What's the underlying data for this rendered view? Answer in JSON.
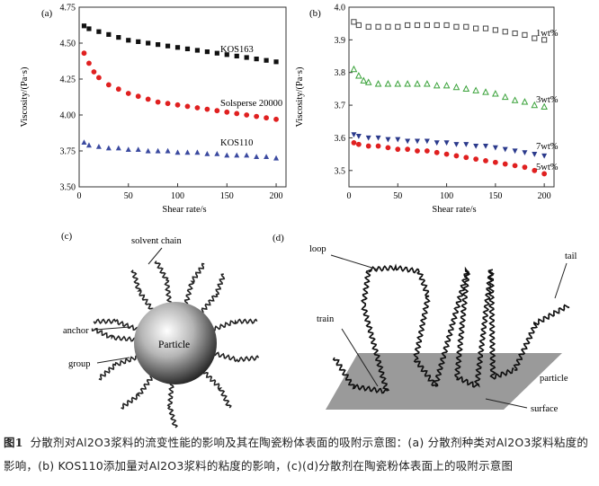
{
  "chart_data": [
    {
      "panel": "(a)",
      "type": "scatter",
      "xlabel": "Shear rate/s",
      "ylabel": "Viscosity/(Pa·s)",
      "xlim": [
        0,
        210
      ],
      "ylim": [
        3.5,
        4.75
      ],
      "xticks": [
        "0",
        "50",
        "100",
        "150",
        "200"
      ],
      "yticks": [
        "3.50",
        "3.75",
        "4.00",
        "4.25",
        "4.50",
        "4.75"
      ],
      "series": [
        {
          "name": "KOS163",
          "marker": "square",
          "color": "#111111",
          "x": [
            5,
            10,
            20,
            30,
            40,
            50,
            60,
            70,
            80,
            90,
            100,
            110,
            120,
            130,
            140,
            150,
            160,
            170,
            180,
            190,
            200
          ],
          "y": [
            4.62,
            4.6,
            4.58,
            4.56,
            4.54,
            4.52,
            4.51,
            4.5,
            4.49,
            4.48,
            4.47,
            4.46,
            4.45,
            4.44,
            4.43,
            4.42,
            4.41,
            4.4,
            4.39,
            4.38,
            4.37
          ]
        },
        {
          "name": "Solsperse 20000",
          "marker": "circle",
          "color": "#e02020",
          "x": [
            5,
            10,
            15,
            20,
            30,
            40,
            50,
            60,
            70,
            80,
            90,
            100,
            110,
            120,
            130,
            140,
            150,
            160,
            170,
            180,
            190,
            200
          ],
          "y": [
            4.43,
            4.36,
            4.3,
            4.26,
            4.21,
            4.18,
            4.15,
            4.13,
            4.11,
            4.09,
            4.08,
            4.07,
            4.06,
            4.05,
            4.04,
            4.03,
            4.02,
            4.01,
            4.0,
            3.99,
            3.98,
            3.97
          ]
        },
        {
          "name": "KOS110",
          "marker": "triangle-up",
          "color": "#3b4aa0",
          "x": [
            5,
            10,
            20,
            30,
            40,
            50,
            60,
            70,
            80,
            90,
            100,
            110,
            120,
            130,
            140,
            150,
            160,
            170,
            180,
            190,
            200
          ],
          "y": [
            3.81,
            3.79,
            3.78,
            3.77,
            3.77,
            3.76,
            3.76,
            3.75,
            3.75,
            3.75,
            3.74,
            3.74,
            3.74,
            3.73,
            3.73,
            3.72,
            3.72,
            3.72,
            3.71,
            3.71,
            3.7
          ]
        }
      ]
    },
    {
      "panel": "(b)",
      "type": "scatter",
      "xlabel": "Shear rate/s",
      "ylabel": "Viscosity/(Pa·s)",
      "xlim": [
        0,
        210
      ],
      "ylim": [
        3.45,
        4.0
      ],
      "xticks": [
        "0",
        "50",
        "100",
        "150",
        "200"
      ],
      "yticks": [
        "3.5",
        "3.6",
        "3.7",
        "3.8",
        "3.9",
        "4.0"
      ],
      "series": [
        {
          "name": "1wt%",
          "marker": "square-open",
          "color": "#444444",
          "x": [
            5,
            10,
            20,
            30,
            40,
            50,
            60,
            70,
            80,
            90,
            100,
            110,
            120,
            130,
            140,
            150,
            160,
            170,
            180,
            190,
            200
          ],
          "y": [
            3.955,
            3.945,
            3.94,
            3.94,
            3.94,
            3.94,
            3.945,
            3.945,
            3.945,
            3.945,
            3.945,
            3.94,
            3.94,
            3.935,
            3.935,
            3.93,
            3.925,
            3.92,
            3.915,
            3.905,
            3.9
          ]
        },
        {
          "name": "3wt%",
          "marker": "triangle-up-open",
          "color": "#3aa23a",
          "x": [
            5,
            10,
            15,
            20,
            30,
            40,
            50,
            60,
            70,
            80,
            90,
            100,
            110,
            120,
            130,
            140,
            150,
            160,
            170,
            180,
            190,
            200
          ],
          "y": [
            3.81,
            3.79,
            3.775,
            3.77,
            3.765,
            3.765,
            3.765,
            3.765,
            3.765,
            3.765,
            3.76,
            3.76,
            3.755,
            3.75,
            3.745,
            3.74,
            3.735,
            3.725,
            3.715,
            3.71,
            3.7,
            3.695
          ]
        },
        {
          "name": "7wt%",
          "marker": "triangle-down",
          "color": "#2b3a8c",
          "x": [
            5,
            10,
            20,
            30,
            40,
            50,
            60,
            70,
            80,
            90,
            100,
            110,
            120,
            130,
            140,
            150,
            160,
            170,
            180,
            190,
            200
          ],
          "y": [
            3.61,
            3.605,
            3.6,
            3.6,
            3.595,
            3.595,
            3.59,
            3.59,
            3.59,
            3.585,
            3.585,
            3.58,
            3.58,
            3.575,
            3.575,
            3.57,
            3.565,
            3.56,
            3.555,
            3.55,
            3.545
          ]
        },
        {
          "name": "5wt%",
          "marker": "circle",
          "color": "#e02020",
          "x": [
            5,
            10,
            20,
            30,
            40,
            50,
            60,
            70,
            80,
            90,
            100,
            110,
            120,
            130,
            140,
            150,
            160,
            170,
            180,
            190,
            200
          ],
          "y": [
            3.585,
            3.58,
            3.575,
            3.575,
            3.57,
            3.565,
            3.565,
            3.56,
            3.56,
            3.555,
            3.55,
            3.545,
            3.54,
            3.535,
            3.53,
            3.525,
            3.52,
            3.515,
            3.51,
            3.5,
            3.49
          ]
        }
      ]
    }
  ],
  "diagram_c": {
    "panel": "(c)",
    "labels": {
      "solvent_chain": "solvent chain",
      "anchor": "anchor",
      "group": "group",
      "particle": "Particle"
    }
  },
  "diagram_d": {
    "panel": "(d)",
    "labels": {
      "loop": "loop",
      "train": "train",
      "tail": "tail",
      "particle": "particle",
      "surface": "surface"
    }
  },
  "caption": {
    "label": "图1",
    "text": "分散剂对Al2O3浆料的流变性能的影响及其在陶瓷粉体表面的吸附示意图：(a) 分散剂种类对Al2O3浆料粘度的影响，(b) KOS110添加量对Al2O3浆料的粘度的影响，(c)(d)分散剂在陶瓷粉体表面上的吸附示意图"
  },
  "colors": {
    "square": "#111111",
    "red": "#e02020",
    "blue": "#3b4aa0",
    "green": "#3aa23a",
    "surface": "#9a9a9a"
  }
}
